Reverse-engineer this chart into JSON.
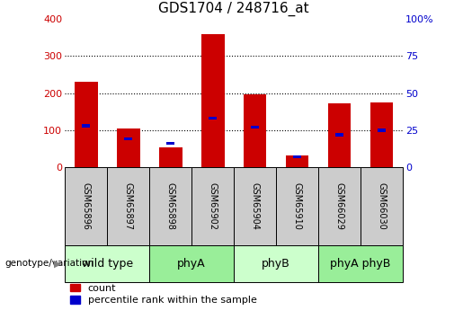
{
  "title": "GDS1704 / 248716_at",
  "samples": [
    "GSM65896",
    "GSM65897",
    "GSM65898",
    "GSM65902",
    "GSM65904",
    "GSM65910",
    "GSM66029",
    "GSM66030"
  ],
  "count_values": [
    230,
    105,
    55,
    358,
    197,
    32,
    173,
    175
  ],
  "percentile_values": [
    28,
    19,
    16,
    33,
    27,
    7,
    22,
    25
  ],
  "groups": [
    {
      "label": "wild type",
      "start": 0,
      "end": 2,
      "color": "#ccffcc"
    },
    {
      "label": "phyA",
      "start": 2,
      "end": 4,
      "color": "#99ee99"
    },
    {
      "label": "phyB",
      "start": 4,
      "end": 6,
      "color": "#ccffcc"
    },
    {
      "label": "phyA phyB",
      "start": 6,
      "end": 8,
      "color": "#99ee99"
    }
  ],
  "ylim_left": [
    0,
    400
  ],
  "ylim_right": [
    0,
    100
  ],
  "yticks_left": [
    0,
    100,
    200,
    300,
    400
  ],
  "yticks_right": [
    0,
    25,
    50,
    75,
    100
  ],
  "ytick_labels_right": [
    "0",
    "25",
    "50",
    "75",
    "100%"
  ],
  "bar_color_count": "#cc0000",
  "bar_color_pct": "#0000cc",
  "background_color": "#ffffff",
  "left_axis_color": "#cc0000",
  "right_axis_color": "#0000cc",
  "legend_count_label": "count",
  "legend_pct_label": "percentile rank within the sample",
  "group_row_label": "genotype/variation",
  "sample_cell_color": "#cccccc",
  "fontsize_title": 11,
  "fontsize_ticks": 8,
  "fontsize_sample": 7,
  "fontsize_group": 9,
  "fontsize_legend": 8,
  "fontsize_grouplabel": 7.5
}
